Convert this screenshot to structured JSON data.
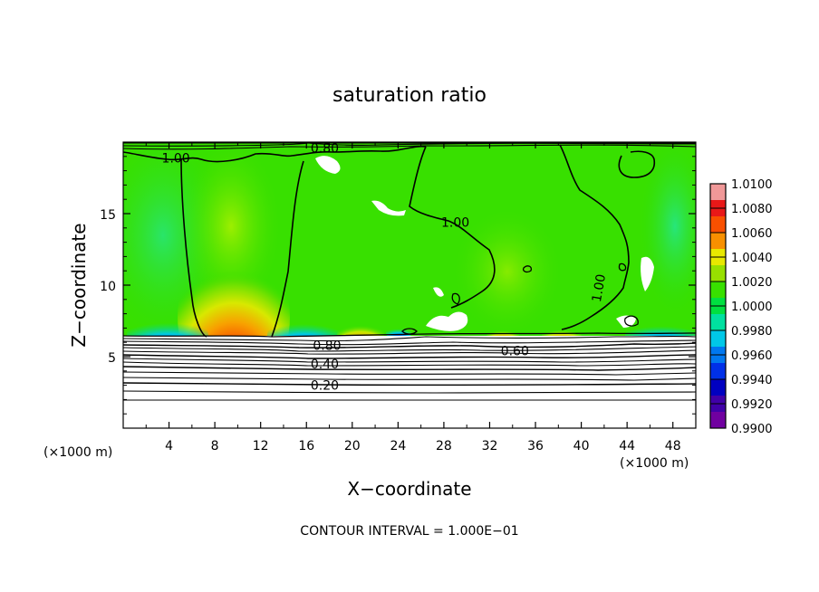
{
  "chart_data": {
    "type": "heatmap",
    "title": "saturation ratio",
    "xlabel": "X−coordinate",
    "ylabel": "Z−coordinate",
    "x_unit": "(×1000 m)",
    "y_unit": "(×1000 m)",
    "xlim": [
      0,
      50
    ],
    "ylim": [
      0,
      20
    ],
    "x_ticks": [
      4,
      8,
      12,
      16,
      20,
      24,
      28,
      32,
      36,
      40,
      44,
      48
    ],
    "y_ticks": [
      5,
      10,
      15
    ],
    "colorbar": {
      "min": 0.99,
      "max": 1.01,
      "labels": [
        "1.0100",
        "1.0080",
        "1.0060",
        "1.0040",
        "1.0020",
        "1.0000",
        "0.9980",
        "0.9960",
        "0.9940",
        "0.9920",
        "0.9900"
      ],
      "colors": [
        "#f09898",
        "#e81818",
        "#f85000",
        "#f89000",
        "#e8e800",
        "#98e000",
        "#38e000",
        "#00e040",
        "#00e0a0",
        "#00c8e8",
        "#0078f0",
        "#0030e8",
        "#0000c0",
        "#4000a8",
        "#7000a0"
      ]
    },
    "contour_labels": [
      {
        "text": "1.00",
        "x": 4.6,
        "y": 18.9
      },
      {
        "text": "0.80",
        "x": 17.6,
        "y": 19.6
      },
      {
        "text": "1.00",
        "x": 29,
        "y": 14.4
      },
      {
        "text": "1.00",
        "x": 41.5,
        "y": 9.8,
        "rotate": -80
      },
      {
        "text": "0.80",
        "x": 17.8,
        "y": 5.8
      },
      {
        "text": "0.60",
        "x": 34.2,
        "y": 5.4
      },
      {
        "text": "0.40",
        "x": 17.6,
        "y": 4.5
      },
      {
        "text": "0.20",
        "x": 17.6,
        "y": 3.0
      }
    ],
    "contour_interval_text": "CONTOUR INTERVAL =  1.000E−01"
  }
}
